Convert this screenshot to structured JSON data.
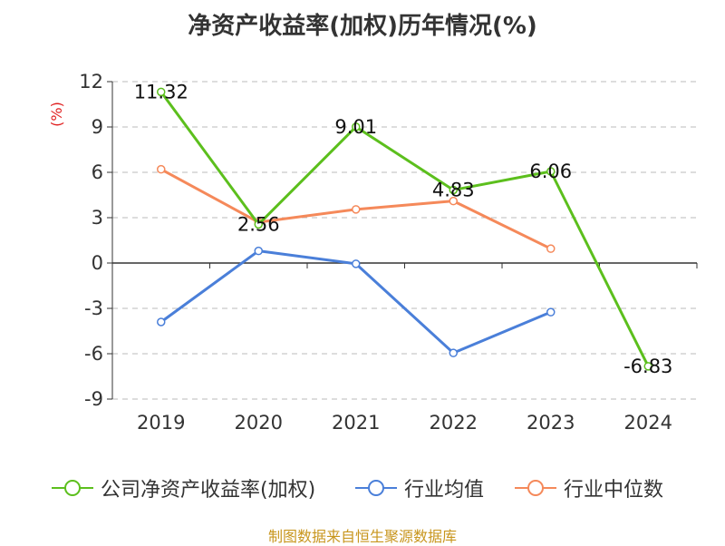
{
  "title": "净资产收益率(加权)历年情况(%)",
  "footer": "制图数据来自恒生聚源数据库",
  "chart_data": {
    "type": "line",
    "title": "净资产收益率(加权)历年情况(%)",
    "xlabel": "",
    "ylabel": "(%)",
    "categories": [
      "2019",
      "2020",
      "2021",
      "2022",
      "2023",
      "2024"
    ],
    "ylim": [
      -9,
      12
    ],
    "yticks": [
      12,
      9,
      6,
      3,
      0,
      -3,
      -6,
      -9
    ],
    "grid": true,
    "legend_position": "bottom",
    "series": [
      {
        "name": "公司净资产收益率(加权)",
        "color": "#5cbf1d",
        "values": [
          11.32,
          2.56,
          9.01,
          4.83,
          6.06,
          -6.83
        ],
        "labels": [
          "11.32",
          "2.56",
          "9.01",
          "4.83",
          "6.06",
          "-6.83"
        ]
      },
      {
        "name": "行业均值",
        "color": "#4a7fd9",
        "values": [
          -3.9,
          0.8,
          -0.05,
          -5.95,
          -3.25,
          null
        ]
      },
      {
        "name": "行业中位数",
        "color": "#f5895a",
        "values": [
          6.2,
          2.7,
          3.55,
          4.1,
          0.95,
          null
        ]
      }
    ]
  }
}
